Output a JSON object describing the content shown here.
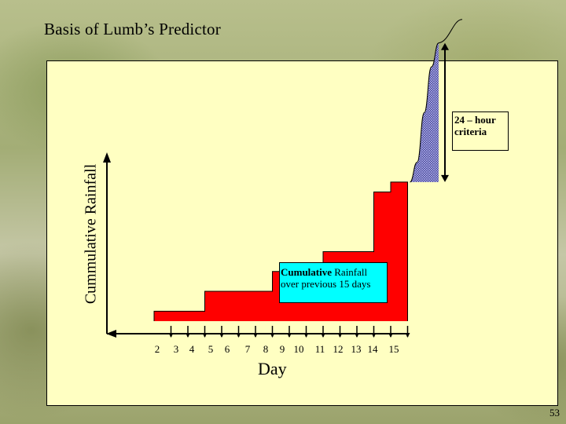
{
  "title": "Basis of Lumb’s  Predictor",
  "page_number": "53",
  "colors": {
    "panel": "#ffffc2",
    "bars": "#ff0000",
    "criteria_fill": "#3d3d8f",
    "label_box": "#00ffff"
  },
  "chart_data": {
    "type": "area",
    "title": "",
    "xlabel": "Day",
    "ylabel": "Cummulative Rainfall",
    "x_ticks": [
      "2",
      "3",
      "4",
      "5",
      "6",
      "7",
      "8",
      "9",
      "10",
      "11",
      "12",
      "13",
      "14",
      "15"
    ],
    "series": [
      {
        "name": "Cumulative Rainfall over previous 15 days",
        "values": [
          0.5,
          0.5,
          0.5,
          1.5,
          1.5,
          1.5,
          1.5,
          2.5,
          2.5,
          2.5,
          3.5,
          3.5,
          3.5,
          6.5,
          7.0
        ]
      }
    ],
    "criteria_curve": [
      7.0,
      8.0,
      10.5,
      12.8,
      14.0
    ],
    "annotations": {
      "cumulative_label_bold": "Cumulative",
      "cumulative_label_rest": " Rainfall over previous 15 days",
      "criteria_label": "24 – hour criteria"
    }
  }
}
